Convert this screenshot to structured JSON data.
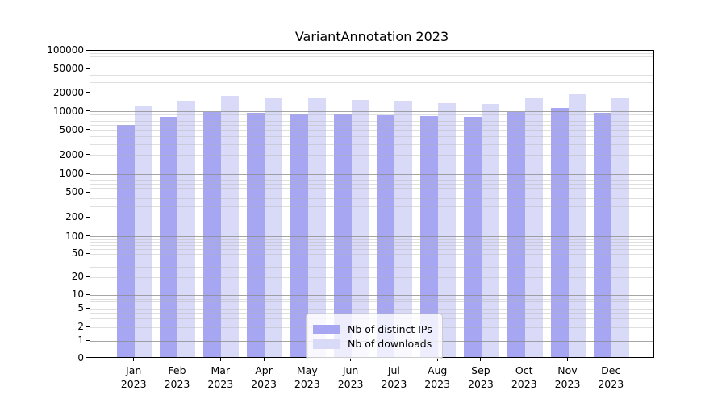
{
  "chart_data": {
    "type": "bar",
    "title": "VariantAnnotation 2023",
    "xlabel": "",
    "ylabel": "",
    "categories": [
      "Jan\n2023",
      "Feb\n2023",
      "Mar\n2023",
      "Apr\n2023",
      "May\n2023",
      "Jun\n2023",
      "Jul\n2023",
      "Aug\n2023",
      "Sep\n2023",
      "Oct\n2023",
      "Nov\n2023",
      "Dec\n2023"
    ],
    "series": [
      {
        "name": "Nb of distinct IPs",
        "color": "#a6a6f2",
        "values": [
          5800,
          7800,
          9500,
          9200,
          8800,
          8600,
          8300,
          8100,
          7800,
          9500,
          10900,
          9100
        ]
      },
      {
        "name": "Nb of downloads",
        "color": "#d9d9f8",
        "values": [
          11500,
          14500,
          17400,
          15700,
          15900,
          15000,
          14200,
          13200,
          12700,
          15700,
          18500,
          15700
        ]
      }
    ],
    "y_axis": {
      "scale": "log-like (0 baseline)",
      "ylim": [
        0,
        100000
      ],
      "tick_values": [
        100000,
        50000,
        20000,
        10000,
        5000,
        2000,
        1000,
        500,
        200,
        100,
        50,
        20,
        10,
        5,
        2,
        1,
        0
      ],
      "tick_labels": [
        "100000",
        "50000",
        "20000",
        "10000",
        "5000",
        "2000",
        "1000",
        "500",
        "200",
        "100",
        "50",
        "20",
        "10",
        "5",
        "2",
        "1",
        "0"
      ],
      "major_grid_values": [
        10000,
        1000,
        100,
        10,
        1
      ]
    },
    "grid": "both (major + minor, drawn over bars)",
    "legend": {
      "position": "bottom-center",
      "entries": [
        "Nb of distinct IPs",
        "Nb of downloads"
      ]
    }
  }
}
